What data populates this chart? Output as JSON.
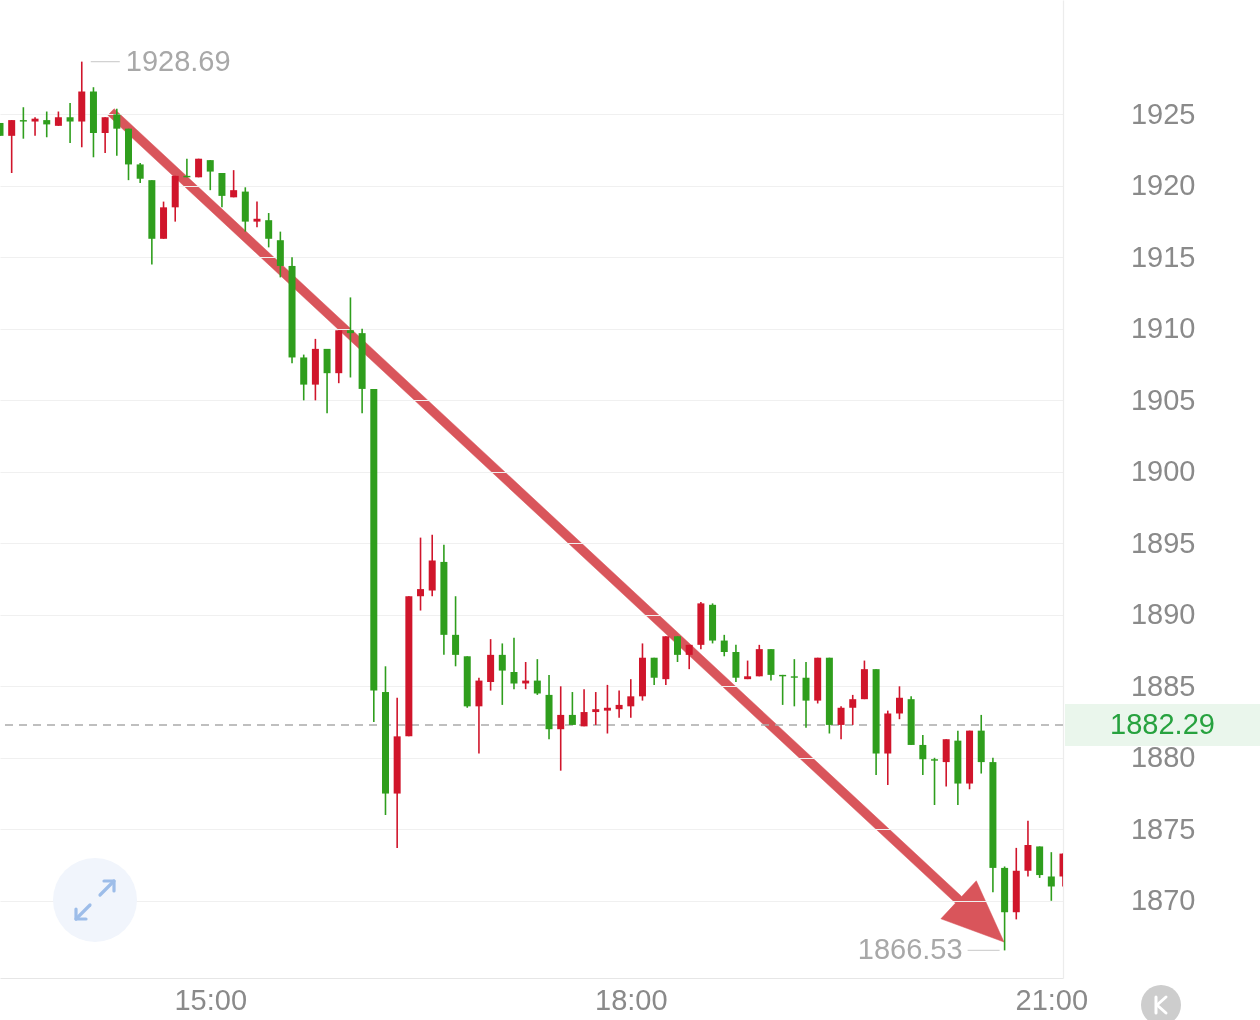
{
  "chart_data": {
    "type": "candlestick",
    "x": [
      13.5,
      13.5833,
      13.6667,
      13.75,
      13.8333,
      13.9167,
      14,
      14.0833,
      14.1667,
      14.25,
      14.3333,
      14.4167,
      14.5,
      14.5833,
      14.6667,
      14.75,
      14.8333,
      14.9167,
      15,
      15.0833,
      15.1667,
      15.25,
      15.3333,
      15.4167,
      15.5,
      15.5833,
      15.6667,
      15.75,
      15.8333,
      15.9167,
      16,
      16.0833,
      16.1667,
      16.25,
      16.3333,
      16.4167,
      16.5,
      16.5833,
      16.6667,
      16.75,
      16.8333,
      16.9167,
      17,
      17.0833,
      17.1667,
      17.25,
      17.3333,
      17.4167,
      17.5,
      17.5833,
      17.6667,
      17.75,
      17.8333,
      17.9167,
      18,
      18.0833,
      18.1667,
      18.25,
      18.3333,
      18.4167,
      18.5,
      18.5833,
      18.6667,
      18.75,
      18.8333,
      18.9167,
      19,
      19.0833,
      19.1667,
      19.25,
      19.3333,
      19.4167,
      19.5,
      19.5833,
      19.6667,
      19.75,
      19.8333,
      19.9167,
      20,
      20.0833,
      20.1667,
      20.25,
      20.3333,
      20.4167,
      20.5,
      20.5833,
      20.6667,
      20.75,
      20.8333,
      20.9167,
      21,
      21.0833
    ],
    "ohlc": [
      [
        1924.4,
        1924.4,
        1923.5,
        1923.5
      ],
      [
        1923.5,
        1924.6,
        1920.9,
        1924.6
      ],
      [
        1924.6,
        1925.5,
        1923.3,
        1924.5
      ],
      [
        1924.5,
        1924.8,
        1923.5,
        1924.7
      ],
      [
        1924.6,
        1925.2,
        1923.4,
        1924.3
      ],
      [
        1924.2,
        1925.2,
        1924.2,
        1924.8
      ],
      [
        1924.8,
        1925.8,
        1923.0,
        1924.5
      ],
      [
        1924.5,
        1928.69,
        1922.7,
        1926.6
      ],
      [
        1926.6,
        1926.9,
        1922.0,
        1923.7
      ],
      [
        1923.7,
        1924.8,
        1922.3,
        1924.8
      ],
      [
        1925.0,
        1925.4,
        1922.1,
        1924.0
      ],
      [
        1924.0,
        1924.0,
        1920.4,
        1921.5
      ],
      [
        1921.5,
        1921.6,
        1920.2,
        1920.5
      ],
      [
        1920.4,
        1920.4,
        1914.5,
        1916.3
      ],
      [
        1916.3,
        1918.9,
        1916.3,
        1918.5
      ],
      [
        1918.5,
        1920.7,
        1917.5,
        1920.7
      ],
      [
        1920.7,
        1921.9,
        1920.6,
        1920.6
      ],
      [
        1920.6,
        1921.9,
        1920.6,
        1921.9
      ],
      [
        1921.8,
        1921.8,
        1919.7,
        1921.0
      ],
      [
        1920.9,
        1920.9,
        1918.5,
        1919.3
      ],
      [
        1919.2,
        1921.1,
        1919.2,
        1919.7
      ],
      [
        1919.6,
        1919.9,
        1916.8,
        1917.5
      ],
      [
        1917.5,
        1918.9,
        1917.1,
        1917.7
      ],
      [
        1917.6,
        1918.1,
        1915.7,
        1916.3
      ],
      [
        1916.2,
        1916.8,
        1913.6,
        1914.4
      ],
      [
        1914.4,
        1915.0,
        1907.6,
        1908.0
      ],
      [
        1908.0,
        1908.2,
        1905.0,
        1906.1
      ],
      [
        1906.1,
        1909.3,
        1905.0,
        1908.6
      ],
      [
        1908.6,
        1908.6,
        1904.1,
        1906.9
      ],
      [
        1906.9,
        1909.9,
        1906.2,
        1909.9
      ],
      [
        1909.9,
        1912.2,
        1906.6,
        1909.7
      ],
      [
        1909.7,
        1910.0,
        1904.1,
        1905.8
      ],
      [
        1905.8,
        1905.8,
        1882.5,
        1884.7
      ],
      [
        1884.6,
        1886.4,
        1876.0,
        1877.5
      ],
      [
        1877.5,
        1884.2,
        1873.7,
        1881.5
      ],
      [
        1881.5,
        1891.3,
        1881.5,
        1891.3
      ],
      [
        1891.3,
        1895.4,
        1890.3,
        1891.8
      ],
      [
        1891.7,
        1895.6,
        1891.3,
        1893.8
      ],
      [
        1893.7,
        1894.9,
        1887.2,
        1888.6
      ],
      [
        1888.6,
        1891.3,
        1886.4,
        1887.2
      ],
      [
        1887.1,
        1887.1,
        1883.5,
        1883.6
      ],
      [
        1883.6,
        1885.6,
        1880.3,
        1885.4
      ],
      [
        1885.3,
        1888.3,
        1884.7,
        1887.2
      ],
      [
        1887.2,
        1888.0,
        1883.7,
        1886.1
      ],
      [
        1886.0,
        1888.4,
        1884.8,
        1885.2
      ],
      [
        1885.2,
        1886.7,
        1884.8,
        1885.4
      ],
      [
        1885.4,
        1886.9,
        1884.4,
        1884.5
      ],
      [
        1884.4,
        1885.8,
        1881.3,
        1882.0
      ],
      [
        1882.0,
        1885.0,
        1879.1,
        1883.0
      ],
      [
        1883.0,
        1884.6,
        1882.3,
        1882.3
      ],
      [
        1882.2,
        1884.8,
        1882.2,
        1883.2
      ],
      [
        1883.2,
        1884.6,
        1882.3,
        1883.4
      ],
      [
        1883.3,
        1885.1,
        1881.7,
        1883.5
      ],
      [
        1883.4,
        1884.7,
        1882.8,
        1883.7
      ],
      [
        1883.6,
        1885.5,
        1882.8,
        1884.3
      ],
      [
        1884.3,
        1888.0,
        1884.0,
        1887.0
      ],
      [
        1887.0,
        1887.0,
        1885.1,
        1885.6
      ],
      [
        1885.5,
        1888.5,
        1885.1,
        1888.5
      ],
      [
        1888.5,
        1888.5,
        1886.7,
        1887.2
      ],
      [
        1887.2,
        1887.9,
        1886.2,
        1887.9
      ],
      [
        1887.9,
        1890.9,
        1887.6,
        1890.8
      ],
      [
        1890.7,
        1890.8,
        1888.0,
        1888.2
      ],
      [
        1888.2,
        1888.6,
        1887.1,
        1887.4
      ],
      [
        1887.4,
        1887.9,
        1885.3,
        1885.6
      ],
      [
        1885.5,
        1886.8,
        1885.5,
        1885.7
      ],
      [
        1885.7,
        1887.9,
        1885.7,
        1887.6
      ],
      [
        1887.6,
        1887.6,
        1885.4,
        1885.8
      ],
      [
        1885.8,
        1885.8,
        1883.7,
        1885.7
      ],
      [
        1885.7,
        1886.9,
        1883.6,
        1885.6
      ],
      [
        1885.6,
        1886.7,
        1882.1,
        1884.0
      ],
      [
        1884.0,
        1887.0,
        1883.8,
        1887.0
      ],
      [
        1887.0,
        1887.0,
        1881.7,
        1882.3
      ],
      [
        1882.3,
        1883.6,
        1881.3,
        1883.5
      ],
      [
        1883.5,
        1884.4,
        1882.3,
        1884.1
      ],
      [
        1884.1,
        1886.8,
        1884.1,
        1886.2
      ],
      [
        1886.2,
        1886.2,
        1878.8,
        1880.3
      ],
      [
        1880.3,
        1883.3,
        1878.1,
        1883.1
      ],
      [
        1883.1,
        1885.0,
        1882.7,
        1884.2
      ],
      [
        1884.1,
        1884.3,
        1880.9,
        1880.9
      ],
      [
        1880.9,
        1881.6,
        1878.8,
        1879.9
      ],
      [
        1879.9,
        1880.0,
        1876.7,
        1879.8
      ],
      [
        1879.7,
        1881.3,
        1878.0,
        1881.3
      ],
      [
        1881.2,
        1881.9,
        1876.7,
        1878.2
      ],
      [
        1878.2,
        1881.9,
        1877.8,
        1881.9
      ],
      [
        1881.9,
        1883.0,
        1878.9,
        1879.7
      ],
      [
        1879.7,
        1880.0,
        1870.6,
        1872.3
      ],
      [
        1872.3,
        1872.4,
        1866.53,
        1869.2
      ],
      [
        1869.2,
        1873.7,
        1868.7,
        1872.1
      ],
      [
        1872.1,
        1875.6,
        1871.7,
        1873.9
      ],
      [
        1873.8,
        1873.8,
        1871.6,
        1871.8
      ],
      [
        1871.7,
        1873.4,
        1870.0,
        1871.0
      ],
      [
        1871.7,
        1873.3,
        1871.0,
        1873.3
      ]
    ],
    "colors": [
      "#2f9e1d",
      "#d0152b",
      "#2f9e1d",
      "#d0152b",
      "#2f9e1d",
      "#d0152b",
      "#2f9e1d",
      "#d0152b",
      "#2f9e1d",
      "#d0152b",
      "#2f9e1d",
      "#2f9e1d",
      "#2f9e1d",
      "#2f9e1d",
      "#d0152b",
      "#d0152b",
      "#2f9e1d",
      "#d0152b",
      "#2f9e1d",
      "#2f9e1d",
      "#d0152b",
      "#2f9e1d",
      "#d0152b",
      "#2f9e1d",
      "#2f9e1d",
      "#2f9e1d",
      "#2f9e1d",
      "#d0152b",
      "#2f9e1d",
      "#d0152b",
      "#2f9e1d",
      "#2f9e1d",
      "#2f9e1d",
      "#2f9e1d",
      "#d0152b",
      "#d0152b",
      "#d0152b",
      "#d0152b",
      "#2f9e1d",
      "#2f9e1d",
      "#2f9e1d",
      "#d0152b",
      "#d0152b",
      "#2f9e1d",
      "#2f9e1d",
      "#d0152b",
      "#2f9e1d",
      "#2f9e1d",
      "#d0152b",
      "#2f9e1d",
      "#d0152b",
      "#d0152b",
      "#d0152b",
      "#d0152b",
      "#d0152b",
      "#d0152b",
      "#2f9e1d",
      "#d0152b",
      "#2f9e1d",
      "#d0152b",
      "#d0152b",
      "#2f9e1d",
      "#2f9e1d",
      "#2f9e1d",
      "#d0152b",
      "#d0152b",
      "#2f9e1d",
      "#2f9e1d",
      "#2f9e1d",
      "#2f9e1d",
      "#d0152b",
      "#2f9e1d",
      "#d0152b",
      "#d0152b",
      "#d0152b",
      "#2f9e1d",
      "#d0152b",
      "#d0152b",
      "#2f9e1d",
      "#2f9e1d",
      "#2f9e1d",
      "#d0152b",
      "#2f9e1d",
      "#d0152b",
      "#2f9e1d",
      "#2f9e1d",
      "#2f9e1d",
      "#d0152b",
      "#d0152b",
      "#2f9e1d",
      "#2f9e1d",
      "#d0152b"
    ],
    "xlim": [
      13.5,
      21.0833
    ],
    "xticks": [
      {
        "value": 15,
        "label": "15:00"
      },
      {
        "value": 18,
        "label": "18:00"
      },
      {
        "value": 21,
        "label": "21:00"
      }
    ],
    "ylim": [
      1864.6,
      1933.0
    ],
    "yticks": [
      1870,
      1875,
      1880,
      1885,
      1890,
      1895,
      1900,
      1905,
      1910,
      1915,
      1920,
      1925
    ],
    "grid": "y",
    "ref_lines": [
      {
        "axis": "y",
        "value": 1882.29,
        "label": "1882.29",
        "color": "#ababab",
        "line_style": "dashed"
      }
    ],
    "annotations": [
      {
        "text": "1928.69",
        "x": 14.0833,
        "y": 1928.69
      },
      {
        "text": "1866.53",
        "x": 20.6667,
        "y": 1866.53
      }
    ]
  }
}
